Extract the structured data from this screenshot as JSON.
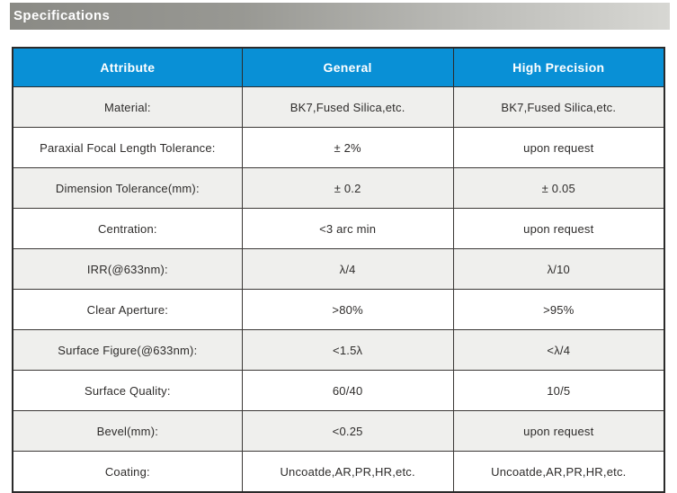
{
  "title_bar": {
    "label": "Specifications"
  },
  "colors": {
    "header_blue": "#0990d6",
    "alt_row_gray": "#efefed",
    "bar_gradient_left": "#8a8a85",
    "bar_gradient_right": "#d7d7d3",
    "border_dark": "#2b2b2b",
    "cell_text": "#2e2c2b"
  },
  "table": {
    "columns": [
      "Attribute",
      "General",
      "High Precision"
    ],
    "rows": [
      {
        "attribute": "Material:",
        "general": "BK7,Fused Silica,etc.",
        "high_precision": "BK7,Fused Silica,etc."
      },
      {
        "attribute": "Paraxial Focal Length Tolerance:",
        "general": "± 2%",
        "high_precision": "upon request"
      },
      {
        "attribute": "Dimension Tolerance(mm):",
        "general": "± 0.2",
        "high_precision": "± 0.05"
      },
      {
        "attribute": "Centration:",
        "general": "<3 arc min",
        "high_precision": "upon request"
      },
      {
        "attribute": "IRR(@633nm):",
        "general": "λ/4",
        "high_precision": "λ/10"
      },
      {
        "attribute": "Clear Aperture:",
        "general": ">80%",
        "high_precision": ">95%"
      },
      {
        "attribute": "Surface Figure(@633nm):",
        "general": "<1.5λ",
        "high_precision": "<λ/4"
      },
      {
        "attribute": "Surface Quality:",
        "general": "60/40",
        "high_precision": "10/5"
      },
      {
        "attribute": "Bevel(mm):",
        "general": "<0.25",
        "high_precision": "upon request"
      },
      {
        "attribute": "Coating:",
        "general": "Uncoatde,AR,PR,HR,etc.",
        "high_precision": "Uncoatde,AR,PR,HR,etc."
      }
    ]
  }
}
